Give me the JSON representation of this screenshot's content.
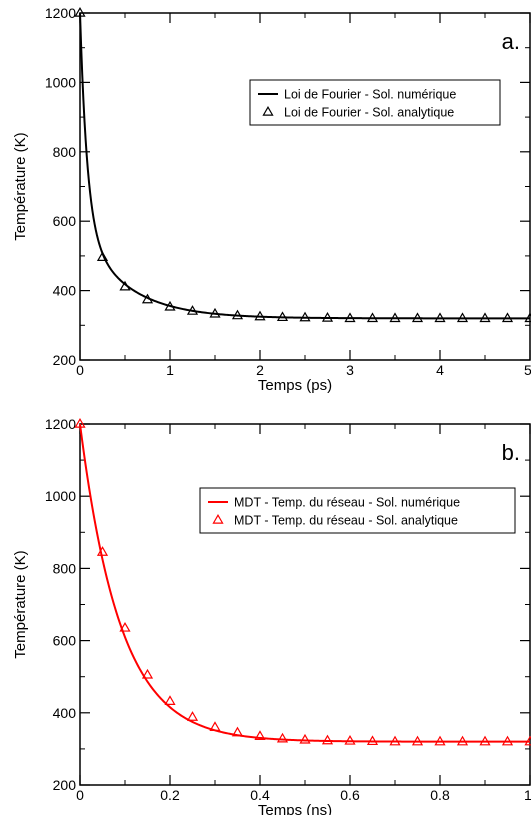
{
  "chart_data": [
    {
      "type": "line",
      "panel_label": "a.",
      "xlabel": "Temps (ps)",
      "ylabel": "Température (K)",
      "xlim": [
        0,
        5
      ],
      "ylim": [
        200,
        1200
      ],
      "xticks": [
        0,
        1,
        2,
        3,
        4,
        5
      ],
      "yticks": [
        200,
        400,
        600,
        800,
        1000,
        1200
      ],
      "grid": false,
      "legend_position": "top-right",
      "color": "#000000",
      "curve": {
        "T0": 1200,
        "Tinf": 320,
        "b1": 0.7,
        "tau1": 0.08,
        "b2": 0.3,
        "tau2": 0.5
      },
      "series": [
        {
          "name": "Loi de Fourier - Sol. numérique",
          "style": "line"
        },
        {
          "name": "Loi de Fourier - Sol. analytique",
          "style": "triangle",
          "x": [
            0,
            0.25,
            0.5,
            0.75,
            1,
            1.25,
            1.5,
            1.75,
            2,
            2.25,
            2.5,
            2.75,
            3,
            3.25,
            3.5,
            3.75,
            4,
            4.25,
            4.5,
            4.75,
            5
          ],
          "values": [
            1200,
            496,
            411,
            374,
            353,
            341,
            333,
            328,
            325,
            323,
            322,
            321,
            320,
            320,
            320,
            320,
            320,
            320,
            320,
            320,
            320
          ]
        }
      ]
    },
    {
      "type": "line",
      "panel_label": "b.",
      "xlabel": "Temps (ns)",
      "ylabel": "Température (K)",
      "xlim": [
        0,
        1
      ],
      "ylim": [
        200,
        1200
      ],
      "xticks": [
        0,
        0.2,
        0.4,
        0.6,
        0.8,
        1
      ],
      "yticks": [
        200,
        400,
        600,
        800,
        1000,
        1200
      ],
      "grid": false,
      "legend_position": "top-right",
      "color": "#ff0000",
      "curve": {
        "T0": 1200,
        "Tinf": 320,
        "b1": 1.0,
        "tau1": 0.09,
        "b2": 0.0,
        "tau2": 1.0
      },
      "series": [
        {
          "name": "MDT - Temp. du réseau - Sol. numérique",
          "style": "line"
        },
        {
          "name": "MDT - Temp. du réseau - Sol. analytique",
          "style": "triangle",
          "x": [
            0,
            0.05,
            0.1,
            0.15,
            0.2,
            0.25,
            0.3,
            0.35,
            0.4,
            0.45,
            0.5,
            0.55,
            0.6,
            0.65,
            0.7,
            0.75,
            0.8,
            0.85,
            0.9,
            0.95,
            1
          ],
          "values": [
            1200,
            845,
            635,
            505,
            432,
            388,
            360,
            345,
            335,
            328,
            325,
            323,
            322,
            321,
            320,
            320,
            320,
            320,
            320,
            320,
            320
          ]
        }
      ]
    }
  ]
}
